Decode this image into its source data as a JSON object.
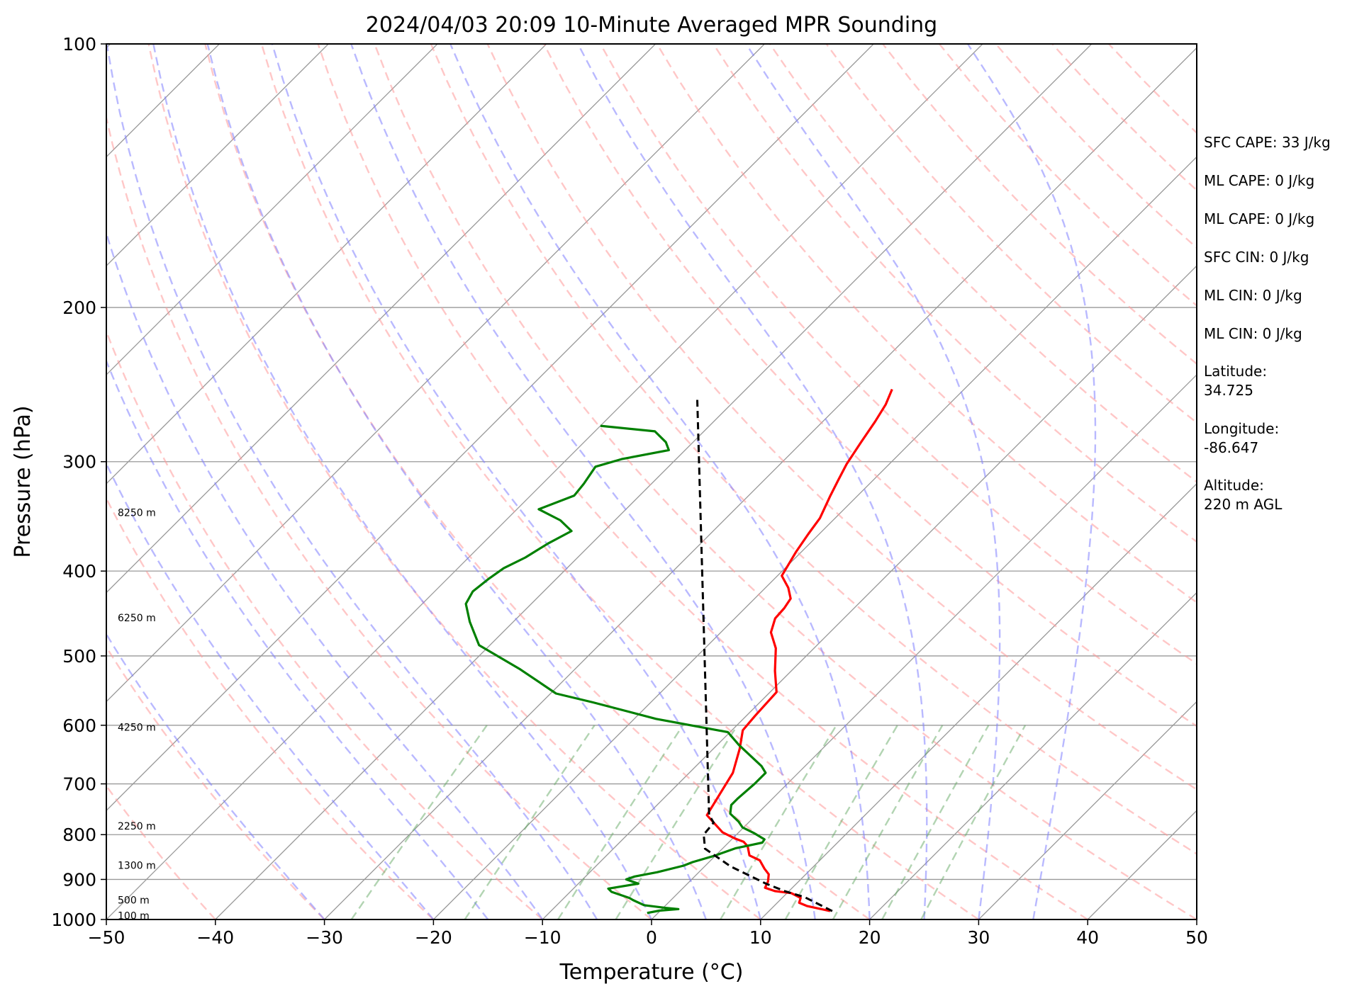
{
  "chart_data": {
    "type": "skew-t",
    "title": "2024/04/03 20:09 10-Minute Averaged MPR Sounding",
    "xlabel": "Temperature (°C)",
    "ylabel": "Pressure (hPa)",
    "xlim": [
      -50,
      50
    ],
    "ylim": [
      1000,
      100
    ],
    "y_scale": "log",
    "grid": true,
    "x_ticks": [
      "−50",
      "−40",
      "−30",
      "−20",
      "−10",
      "0",
      "10",
      "20",
      "30",
      "40",
      "50"
    ],
    "x_tick_values": [
      -50,
      -40,
      -30,
      -20,
      -10,
      0,
      10,
      20,
      30,
      40,
      50
    ],
    "y_ticks": [
      "1000",
      "900",
      "800",
      "700",
      "600",
      "500",
      "400",
      "300",
      "200",
      "100"
    ],
    "y_tick_values": [
      1000,
      900,
      800,
      700,
      600,
      500,
      400,
      300,
      200,
      100
    ],
    "height_labels": [
      {
        "p": 990,
        "label": "100 m"
      },
      {
        "p": 950,
        "label": "500 m"
      },
      {
        "p": 867,
        "label": "1300 m"
      },
      {
        "p": 782,
        "label": "2250 m"
      },
      {
        "p": 603,
        "label": "4250 m"
      },
      {
        "p": 452,
        "label": "6250 m"
      },
      {
        "p": 343,
        "label": "8250 m"
      }
    ],
    "series": [
      {
        "color": "#ff0000",
        "points": [
          [
            15.6,
            978
          ],
          [
            13,
            965
          ],
          [
            12,
            957
          ],
          [
            11.7,
            945
          ],
          [
            10.4,
            933
          ],
          [
            8.7,
            928
          ],
          [
            7.5,
            920
          ],
          [
            7.2,
            905
          ],
          [
            6.6,
            888
          ],
          [
            5.7,
            875
          ],
          [
            4.5,
            856
          ],
          [
            3.1,
            845
          ],
          [
            2.1,
            825
          ],
          [
            1.3,
            815
          ],
          [
            0.2,
            808
          ],
          [
            -1.5,
            795
          ],
          [
            -4.5,
            760
          ],
          [
            -6,
            680
          ],
          [
            -7.6,
            638
          ],
          [
            -9,
            608
          ],
          [
            -9.2,
            585
          ],
          [
            -9.4,
            550
          ],
          [
            -11.5,
            520
          ],
          [
            -13.5,
            490
          ],
          [
            -15.4,
            470
          ],
          [
            -16.3,
            453
          ],
          [
            -16.4,
            441
          ],
          [
            -16.7,
            430
          ],
          [
            -17.9,
            418
          ],
          [
            -19.6,
            405
          ],
          [
            -20.5,
            380
          ],
          [
            -21,
            363
          ],
          [
            -21.4,
            348
          ],
          [
            -22.5,
            328
          ],
          [
            -23.2,
            315
          ],
          [
            -23.9,
            302
          ],
          [
            -24.6,
            285
          ],
          [
            -25.2,
            270
          ],
          [
            -25.8,
            258
          ],
          [
            -26.6,
            248
          ]
        ]
      },
      {
        "color": "#008000",
        "points": [
          [
            -1,
            983
          ],
          [
            -0.1,
            977
          ],
          [
            1.5,
            973
          ],
          [
            0.2,
            970
          ],
          [
            -2,
            963
          ],
          [
            -3.5,
            950
          ],
          [
            -4,
            945
          ],
          [
            -6.2,
            930
          ],
          [
            -6.8,
            922
          ],
          [
            -4.5,
            910
          ],
          [
            -6,
            900
          ],
          [
            -5.5,
            893
          ],
          [
            -3.8,
            883
          ],
          [
            -2,
            868
          ],
          [
            -1.5,
            860
          ],
          [
            -0.1,
            846
          ],
          [
            1.2,
            829
          ],
          [
            2.3,
            822
          ],
          [
            3.1,
            817
          ],
          [
            3,
            810
          ],
          [
            1.5,
            797
          ],
          [
            -0.1,
            785
          ],
          [
            -1,
            773
          ],
          [
            -2.5,
            757
          ],
          [
            -3.2,
            740
          ],
          [
            -3.2,
            727
          ],
          [
            -3,
            700
          ],
          [
            -3,
            680
          ],
          [
            -4,
            668
          ],
          [
            -8,
            632
          ],
          [
            -10.2,
            611
          ],
          [
            -18,
            590
          ],
          [
            -25.3,
            565
          ],
          [
            -29.5,
            552
          ],
          [
            -35,
            518
          ],
          [
            -41,
            486
          ],
          [
            -44,
            457
          ],
          [
            -46,
            436
          ],
          [
            -46.5,
            422
          ],
          [
            -46.2,
            408
          ],
          [
            -45.8,
            397
          ],
          [
            -44.8,
            386
          ],
          [
            -44,
            372
          ],
          [
            -43,
            360
          ],
          [
            -45,
            350
          ],
          [
            -48,
            340
          ],
          [
            -46,
            328
          ],
          [
            -46.2,
            318
          ],
          [
            -46.7,
            304
          ],
          [
            -45,
            298
          ],
          [
            -41.5,
            291
          ],
          [
            -42.5,
            285
          ],
          [
            -44.5,
            277
          ],
          [
            -50,
            273
          ]
        ]
      }
    ],
    "parcel": {
      "color": "#000000",
      "style": "dashed",
      "points": [
        [
          15.8,
          978
        ],
        [
          12,
          943
        ],
        [
          9.6,
          928
        ],
        [
          7.2,
          910
        ],
        [
          2.4,
          870
        ],
        [
          -1.6,
          830
        ],
        [
          -3,
          800
        ],
        [
          -3.2,
          775
        ],
        [
          -4.3,
          760
        ],
        [
          -43.5,
          255
        ]
      ]
    },
    "dry_adiabats_theta_k": [
      -40,
      -30,
      -20,
      -10,
      0,
      10,
      20,
      30,
      40,
      50,
      60,
      70,
      80,
      90,
      100,
      110,
      120,
      130,
      140,
      150,
      160,
      170,
      180
    ],
    "moist_adiabats_t_c": [
      -30,
      -20,
      -15,
      -10,
      -5,
      0,
      5,
      10,
      15,
      20,
      25,
      30,
      35
    ],
    "mixing_ratio_lines_g_kg": [
      0.4,
      1,
      2,
      3,
      6,
      9,
      12,
      16,
      20
    ],
    "colors": {
      "dry_adiabat": "#ff9999",
      "moist_adiabat": "#8080ff",
      "mixing_ratio": "#66aa66",
      "isotherm": "#999999",
      "isobar": "#999999"
    }
  },
  "info": {
    "sfc_cape": "SFC CAPE: 33 J/kg",
    "ml_cape": "ML CAPE: 0 J/kg",
    "mu_cape": "ML CAPE: 0 J/kg",
    "sfc_cin": "SFC CIN: 0 J/kg",
    "ml_cin": "ML CIN: 0 J/kg",
    "mu_cin": "ML CIN: 0 J/kg",
    "lat_label": "Latitude:",
    "lat_value": "34.725",
    "lon_label": "Longitude:",
    "lon_value": "-86.647",
    "alt_label": "Altitude:",
    "alt_value": "220 m AGL"
  }
}
